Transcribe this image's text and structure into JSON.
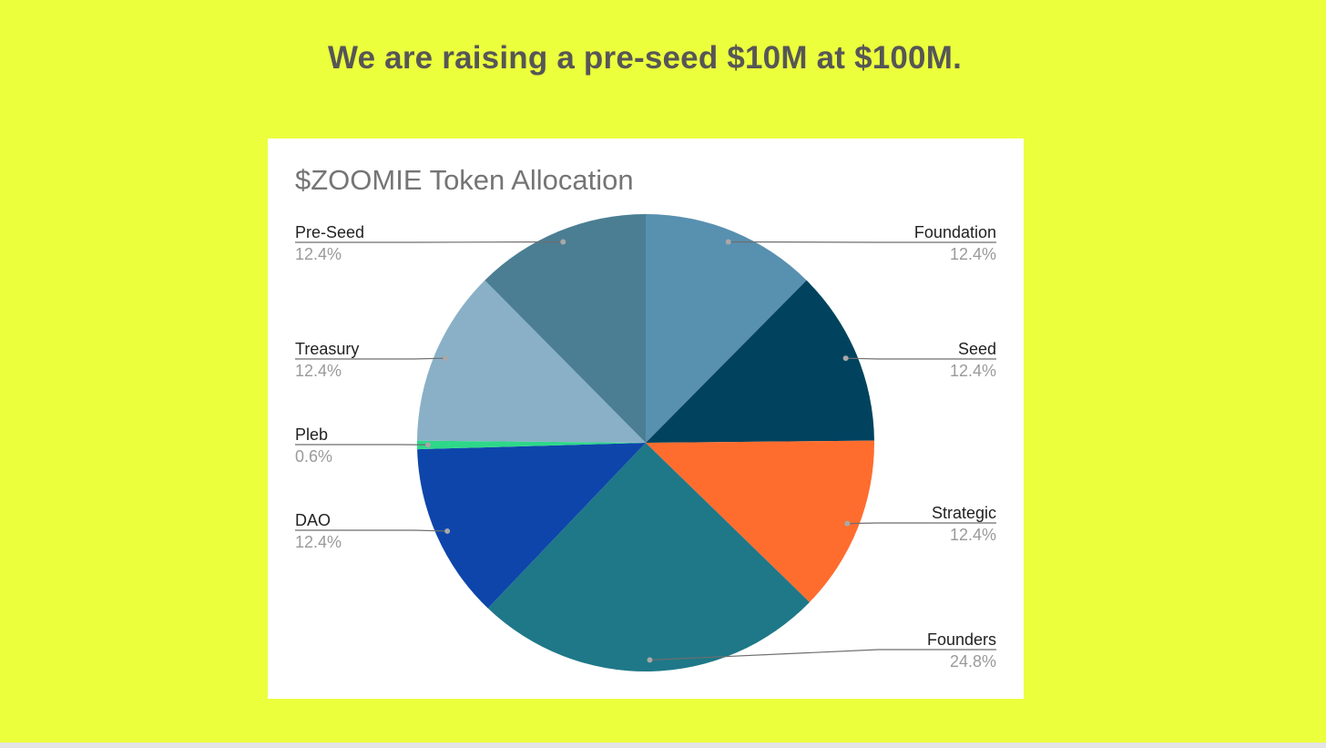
{
  "headline": "We are raising a pre-seed $10M at $100M.",
  "chart_data": {
    "type": "pie",
    "title": "$ZOOMIE Token Allocation",
    "slices": [
      {
        "label": "Foundation",
        "value": 12.4,
        "display": "12.4%",
        "color": "#5890b0",
        "side": "right"
      },
      {
        "label": "Seed",
        "value": 12.4,
        "display": "12.4%",
        "color": "#01435e",
        "side": "right"
      },
      {
        "label": "Strategic",
        "value": 12.4,
        "display": "12.4%",
        "color": "#ff6d2e",
        "side": "right"
      },
      {
        "label": "Founders",
        "value": 24.8,
        "display": "24.8%",
        "color": "#1e7888",
        "side": "right"
      },
      {
        "label": "DAO",
        "value": 12.4,
        "display": "12.4%",
        "color": "#0e45ab",
        "side": "left"
      },
      {
        "label": "Pleb",
        "value": 0.6,
        "display": "0.6%",
        "color": "#2ed889",
        "side": "left"
      },
      {
        "label": "Treasury",
        "value": 12.4,
        "display": "12.4%",
        "color": "#89b0c7",
        "side": "left"
      },
      {
        "label": "Pre-Seed",
        "value": 12.4,
        "display": "12.4%",
        "color": "#4b7e93",
        "side": "left"
      }
    ]
  }
}
